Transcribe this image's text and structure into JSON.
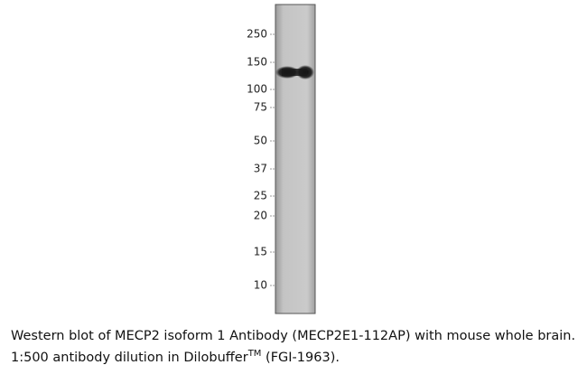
{
  "blot": {
    "markers": [
      "250",
      "150",
      "100",
      "75",
      "50",
      "37",
      "25",
      "20",
      "15",
      "10"
    ]
  },
  "caption": {
    "line1": "Western blot of MECP2 isoform 1 Antibody (MECP2E1-112AP) with mouse whole brain.",
    "line2_before": "1:500 antibody dilution in Dilobuffer",
    "line2_sup": "TM",
    "line2_after": " (FGI-1963)."
  }
}
